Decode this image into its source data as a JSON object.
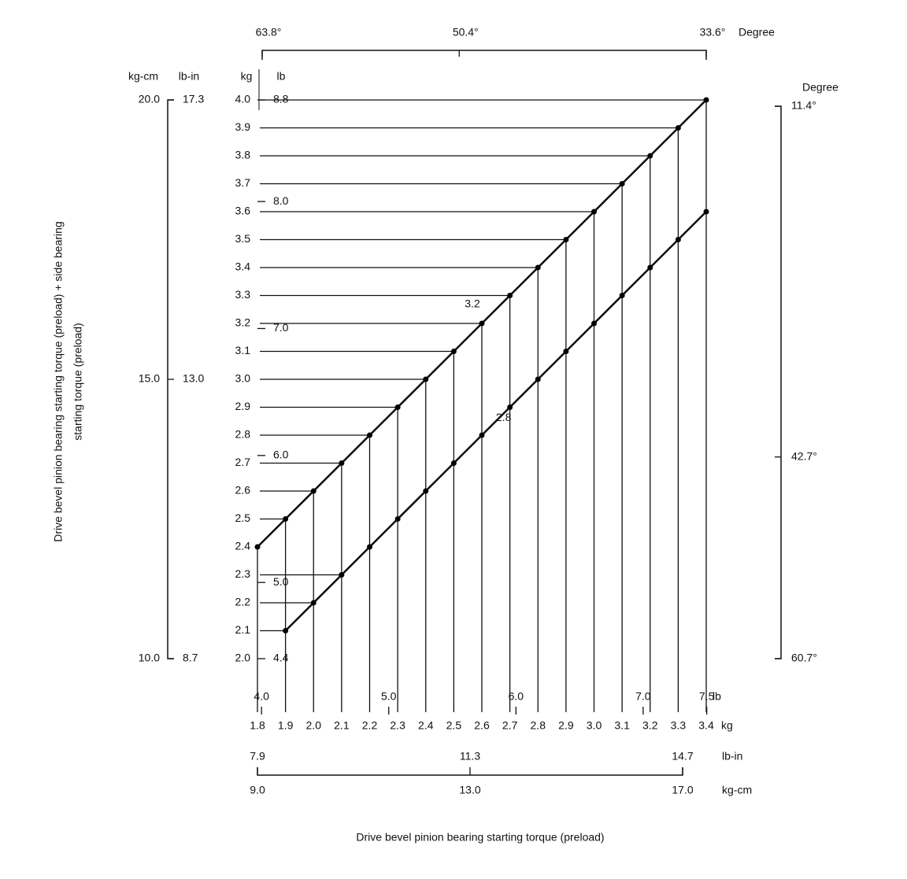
{
  "chart_data": {
    "type": "nomogram",
    "x_title": "Drive bevel pinion bearing starting torque (preload)",
    "y_title": [
      "Drive bevel pinion bearing starting torque (preload) + side bearing",
      "starting torque (preload)"
    ],
    "x_unit": "kg",
    "y_unit": "kg",
    "xlim": [
      1.8,
      3.4
    ],
    "xticks": [
      1.8,
      1.9,
      {
        "value": 2.0,
        "label": "2.0"
      },
      2.1,
      2.2,
      2.3,
      2.4,
      2.5,
      2.6,
      2.7,
      2.8,
      2.9,
      {
        "value": 3.0,
        "label": "3.0"
      },
      3.1,
      3.2,
      3.3,
      3.4
    ],
    "ylim": [
      2.0,
      4.0
    ],
    "yticks": [
      {
        "value": 2.0,
        "label": "2.0"
      },
      2.1,
      2.2,
      2.3,
      2.4,
      2.5,
      2.6,
      2.7,
      2.8,
      2.9,
      {
        "value": 3.0,
        "label": "3.0"
      },
      3.1,
      3.2,
      3.3,
      3.4,
      3.5,
      3.6,
      3.7,
      3.8,
      3.9,
      {
        "value": 4.0,
        "label": "4.0"
      }
    ],
    "x": [
      1.8,
      1.9,
      2.0,
      2.1,
      2.2,
      2.3,
      2.4,
      2.5,
      2.6,
      2.7,
      2.8,
      2.9,
      3.0,
      3.1,
      3.2,
      3.3,
      3.4
    ],
    "series": [
      {
        "name": "3.2",
        "color": "#000000",
        "values": [
          2.4,
          2.5,
          2.6,
          2.7,
          2.8,
          2.9,
          3.0,
          3.1,
          3.2,
          3.3,
          3.4,
          3.5,
          3.6,
          3.7,
          3.8,
          3.9,
          4.0
        ]
      },
      {
        "name": "2.8",
        "color": "#000000",
        "values": [
          null,
          2.1,
          2.2,
          2.3,
          2.4,
          2.5,
          2.6,
          2.7,
          2.8,
          2.9,
          3.0,
          3.1,
          3.2,
          3.3,
          3.4,
          3.5,
          3.6
        ]
      }
    ],
    "x_top": {
      "unit": "Degree",
      "lim": [
        63.8,
        33.6
      ],
      "ticks": [
        {
          "value": 63.8,
          "label": "63.8°"
        },
        {
          "value": 50.4,
          "label": "50.4°"
        },
        {
          "value": 33.6,
          "label": "33.6°"
        }
      ]
    },
    "x_lb": {
      "unit": "lb",
      "lim": [
        3.968,
        7.496
      ],
      "ticks": [
        {
          "value": 4.0,
          "label": "4.0"
        },
        {
          "value": 5.0,
          "label": "5.0"
        },
        {
          "value": 6.0,
          "label": "6.0"
        },
        {
          "value": 7.0,
          "label": "7.0"
        },
        7.5
      ]
    },
    "x_lbin": {
      "unit": "lb-in",
      "lim": [
        7.9,
        14.7
      ],
      "ticks": [
        7.9,
        11.3,
        14.7
      ]
    },
    "x_kgcm": {
      "unit": "kg-cm",
      "lim": [
        9.0,
        17.0
      ],
      "ticks": [
        {
          "value": 9.0,
          "label": "9.0"
        },
        {
          "value": 13.0,
          "label": "13.0"
        },
        {
          "value": 17.0,
          "label": "17.0"
        }
      ]
    },
    "y_lb": {
      "unit": "lb",
      "lim": [
        4.4,
        8.8
      ],
      "ticks": [
        4.4,
        {
          "value": 5.0,
          "label": "5.0"
        },
        {
          "value": 6.0,
          "label": "6.0"
        },
        {
          "value": 7.0,
          "label": "7.0"
        },
        {
          "value": 8.0,
          "label": "8.0"
        },
        8.8
      ]
    },
    "y_lbin": {
      "unit": "lb-in",
      "lim": [
        8.7,
        17.3
      ],
      "ticks": [
        8.7,
        {
          "value": 13.0,
          "label": "13.0"
        },
        17.3
      ]
    },
    "y_kgcm": {
      "unit": "kg-cm",
      "lim": [
        10.0,
        20.0
      ],
      "ticks": [
        {
          "value": 10.0,
          "label": "10.0"
        },
        {
          "value": 15.0,
          "label": "15.0"
        },
        {
          "value": 20.0,
          "label": "20.0"
        }
      ]
    },
    "y_deg": {
      "unit": "Degree",
      "lim": [
        60.7,
        11.4
      ],
      "ticks": [
        {
          "value": 60.7,
          "label": "60.7°"
        },
        {
          "value": 42.7,
          "label": "42.7°"
        },
        {
          "value": 11.4,
          "label": "11.4°"
        }
      ]
    }
  }
}
